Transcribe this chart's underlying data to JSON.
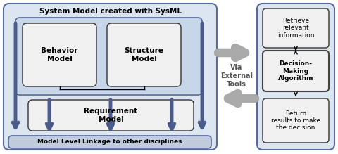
{
  "bg_color": "#dce6f1",
  "box_fill": "#f0f0f0",
  "border_color": "#5a6a9a",
  "dark_arrow_color": "#4a5a8a",
  "gray_arrow_color": "#aaaaaa",
  "title": "System Model created with SysML",
  "behavior_label": "Behavior\nModel",
  "structure_label": "Structure\nModel",
  "requirement_label": "Requirement\nModel",
  "linkage_label": "Model Level Linkage to other disciplines",
  "retrieve_label": "Retrieve\nrelevant\ninformation",
  "decision_label": "Decision-\nMaking\nAlgorithm",
  "return_label": "Return\nresults to make\nthe decision",
  "via_label": "Via\nExternal\nTools"
}
